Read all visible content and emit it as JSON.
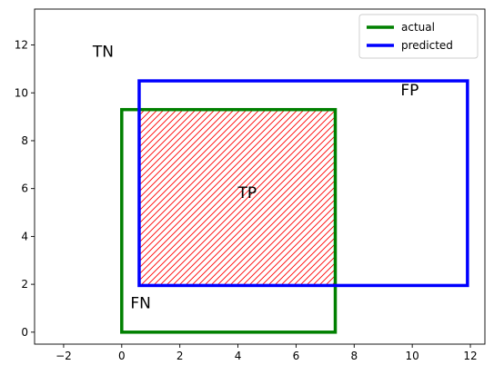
{
  "chart_data": {
    "type": "rectangles",
    "xlim": [
      -3,
      12.5
    ],
    "ylim": [
      -0.5,
      13.5
    ],
    "x_ticks": [
      -2,
      0,
      2,
      4,
      6,
      8,
      10,
      12
    ],
    "y_ticks": [
      0,
      2,
      4,
      6,
      8,
      10,
      12
    ],
    "grid": false,
    "legend_position": "top-right",
    "series": [
      {
        "name": "actual",
        "color": "#008000",
        "x0": 0,
        "y0": 0,
        "x1": 7.35,
        "y1": 9.3
      },
      {
        "name": "predicted",
        "color": "#0000ff",
        "x0": 0.6,
        "y0": 1.95,
        "x1": 11.9,
        "y1": 10.5
      }
    ],
    "overlap": {
      "hatch_color": "#ff0000",
      "x0": 0.6,
      "y0": 1.95,
      "x1": 7.35,
      "y1": 9.3
    },
    "annotations": [
      {
        "text": "TN",
        "x": -1.0,
        "y": 11.5
      },
      {
        "text": "FP",
        "x": 9.6,
        "y": 9.9
      },
      {
        "text": "TP",
        "x": 4.0,
        "y": 5.6
      },
      {
        "text": "FN",
        "x": 0.3,
        "y": 1.0
      }
    ]
  }
}
